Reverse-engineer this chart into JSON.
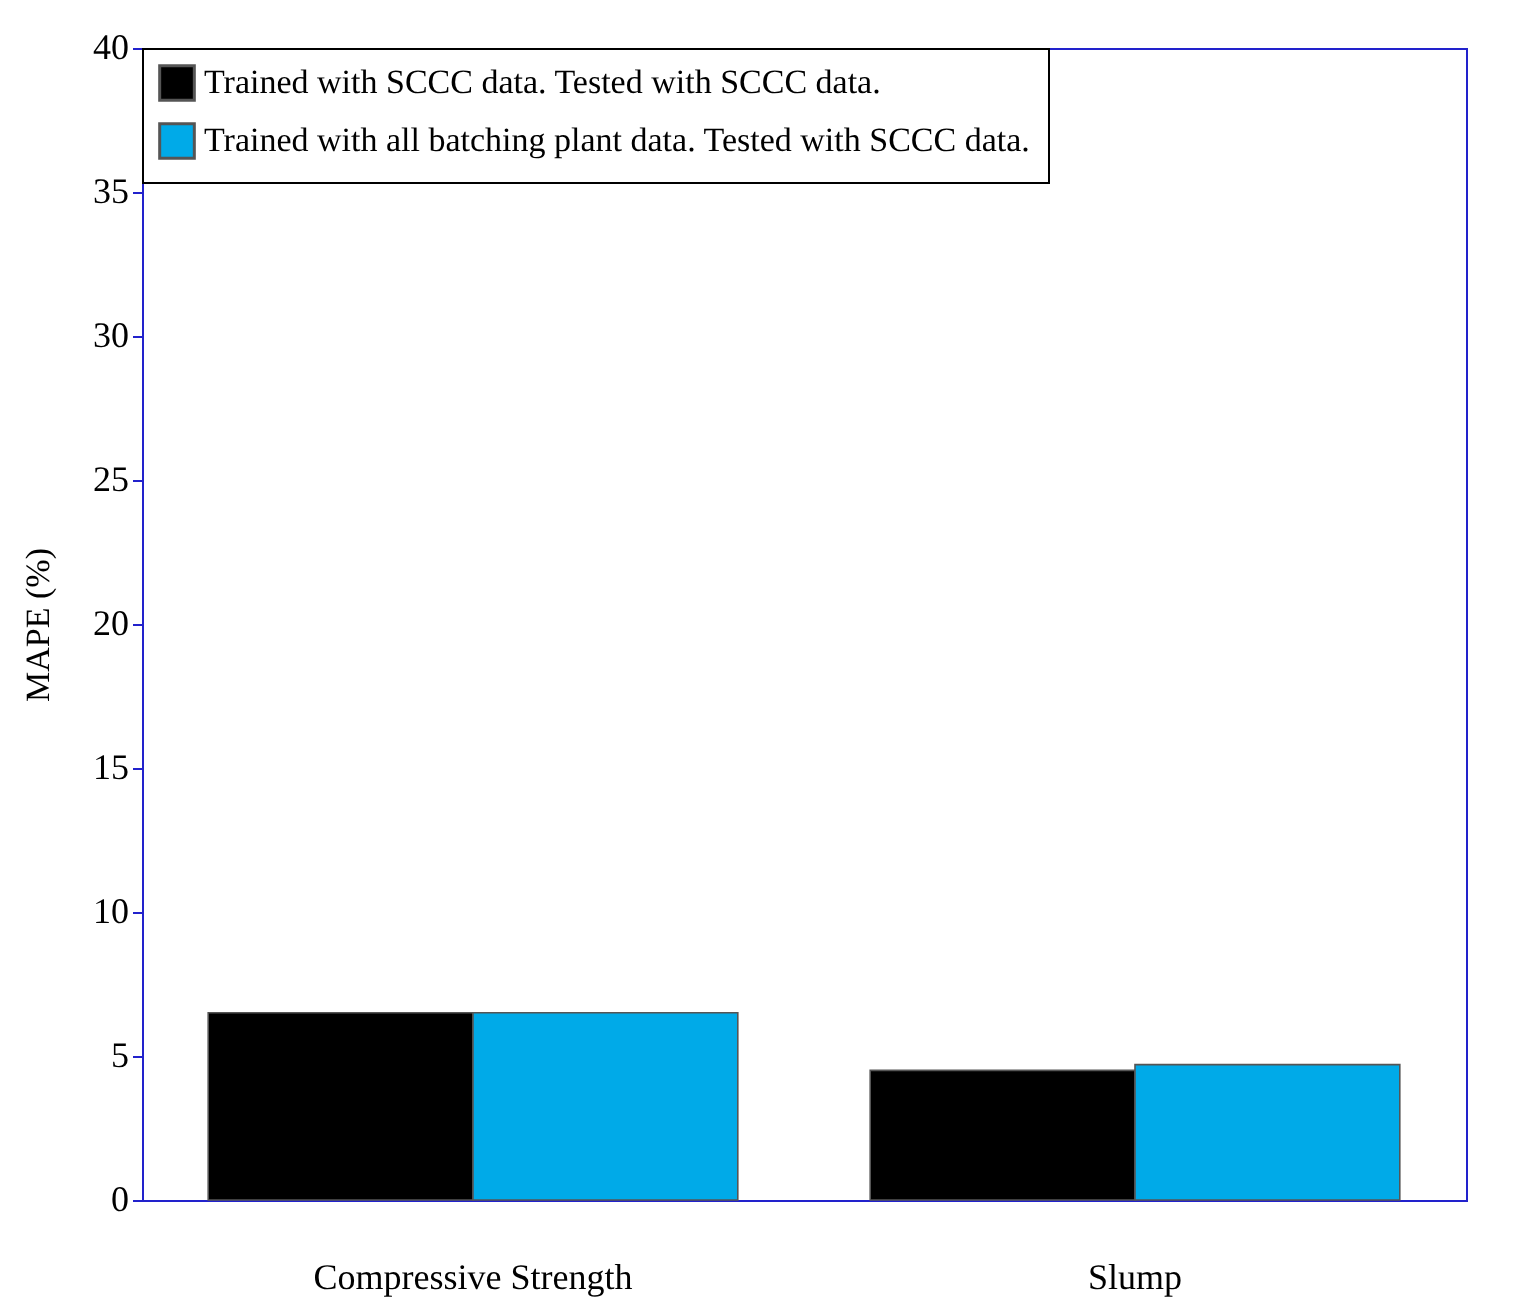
{
  "chart_data": {
    "type": "bar",
    "ylabel": "MAPE (%)",
    "categories": [
      "Compressive Strength",
      "Slump"
    ],
    "series": [
      {
        "name": "Trained with SCCC data. Tested with SCCC data.",
        "color": "#000000",
        "values": [
          6.5,
          4.5
        ]
      },
      {
        "name": "Trained with all batching plant data. Tested with SCCC data.",
        "color": "#00aae8",
        "values": [
          6.5,
          4.7
        ]
      }
    ],
    "ylim": [
      0,
      40
    ],
    "yticks": [
      0,
      5,
      10,
      15,
      20,
      25,
      30,
      35,
      40
    ],
    "grid": false,
    "legend": "top left"
  }
}
